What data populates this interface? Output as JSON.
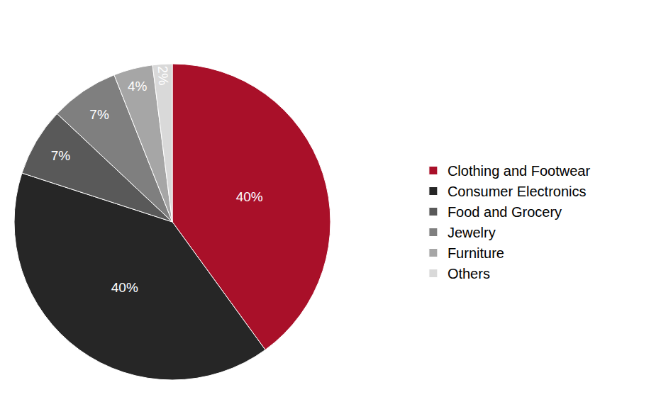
{
  "chart_data": {
    "type": "pie",
    "categories": [
      "Clothing and Footwear",
      "Consumer Electronics",
      "Food and Grocery",
      "Jewelry",
      "Furniture",
      "Others"
    ],
    "values": [
      40,
      40,
      7,
      7,
      4,
      2
    ],
    "value_labels": [
      "40%",
      "40%",
      "7%",
      "7%",
      "4%",
      "2%"
    ],
    "colors": [
      "#a91029",
      "#262626",
      "#595959",
      "#7f7f7f",
      "#a6a6a6",
      "#d9d9d9"
    ],
    "data_labels": true,
    "legend": "right"
  }
}
